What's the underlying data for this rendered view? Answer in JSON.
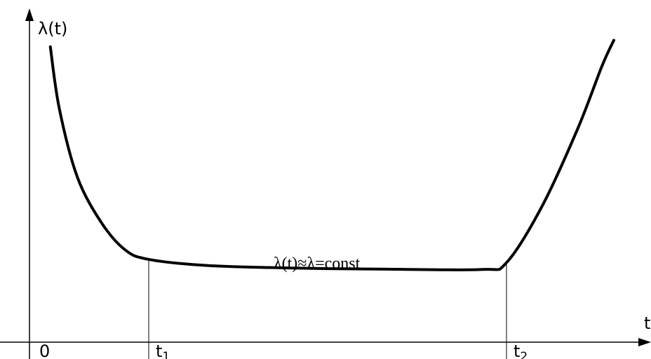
{
  "chart_data": {
    "type": "line",
    "title": "",
    "ylabel": "λ(t)",
    "xlabel": "t",
    "grid": false,
    "xlim": [
      0,
      10
    ],
    "ylim": [
      0,
      10
    ],
    "x_tick_labels": [
      {
        "label": "0",
        "x": 0
      },
      {
        "label": "t",
        "sub": "1",
        "x": 2
      },
      {
        "label": "t",
        "sub": "2",
        "x": 8
      }
    ],
    "series": [
      {
        "values": [
          {
            "x": 0.35,
            "y": 9.1
          },
          {
            "x": 0.5,
            "y": 7.2
          },
          {
            "x": 0.8,
            "y": 5.1
          },
          {
            "x": 1.2,
            "y": 3.7
          },
          {
            "x": 1.6,
            "y": 2.85
          },
          {
            "x": 2.0,
            "y": 2.55
          },
          {
            "x": 3.0,
            "y": 2.36
          },
          {
            "x": 4.5,
            "y": 2.28
          },
          {
            "x": 6.0,
            "y": 2.25
          },
          {
            "x": 7.6,
            "y": 2.24
          },
          {
            "x": 8.0,
            "y": 2.45
          },
          {
            "x": 8.6,
            "y": 4.2
          },
          {
            "x": 9.2,
            "y": 6.6
          },
          {
            "x": 9.6,
            "y": 8.5
          },
          {
            "x": 9.8,
            "y": 9.3
          }
        ]
      }
    ],
    "annotations": [
      {
        "text": "λ(t)≈λ=const",
        "x": 5.5,
        "y": 2.55
      }
    ],
    "vertical_markers": [
      2,
      8
    ]
  }
}
